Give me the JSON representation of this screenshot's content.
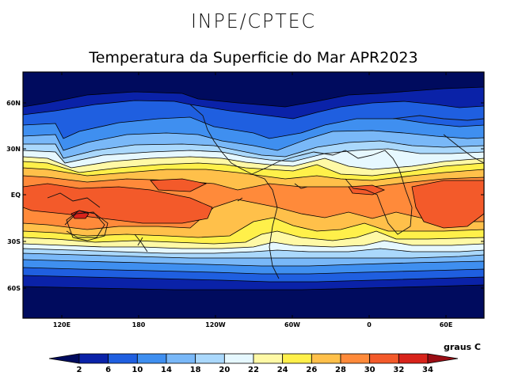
{
  "header": {
    "logo_text": "INPE/CPTEC"
  },
  "map": {
    "title": "Temperatura da Superficie do Mar APR2023",
    "variable": "Sea Surface Temperature",
    "lat_labels": [
      "60N",
      "30N",
      "EQ",
      "30S",
      "60S"
    ],
    "lon_labels": [
      "120E",
      "180",
      "120W",
      "60W",
      "0",
      "60E"
    ]
  },
  "legend": {
    "units": "graus C",
    "ticks": [
      "2",
      "6",
      "10",
      "14",
      "18",
      "20",
      "22",
      "24",
      "26",
      "28",
      "30",
      "32",
      "34"
    ],
    "colors": [
      "#000b5e",
      "#0a22a8",
      "#1f5fe0",
      "#3f8ff0",
      "#79b8f8",
      "#aad8fc",
      "#e6f8ff",
      "#fff9a6",
      "#fff04a",
      "#ffc04a",
      "#ff8a3a",
      "#f35a2a",
      "#d8231a",
      "#9a0d14"
    ]
  }
}
